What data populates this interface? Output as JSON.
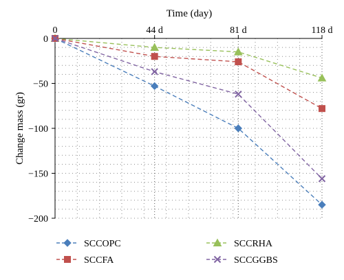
{
  "chart_data": {
    "type": "line",
    "title": "",
    "xlabel": "Time (day)",
    "ylabel": "Change mass (gr)",
    "x": [
      0,
      44,
      81,
      118
    ],
    "x_tick_labels": [
      "0",
      "44 d",
      "81 d",
      "118 d"
    ],
    "y_ticks": [
      0,
      -50,
      -100,
      -150,
      -200
    ],
    "y_tick_labels": [
      "0",
      "−50",
      "−100",
      "−150",
      "−200"
    ],
    "ylim": [
      -200,
      0
    ],
    "xlim": [
      0,
      118
    ],
    "x_axis_position": "top",
    "grid": true,
    "legend_position": "bottom",
    "series": [
      {
        "name": "SCCOPC",
        "values": [
          0,
          -53,
          -100,
          -185
        ],
        "color": "#4a7ebb",
        "marker": "diamond"
      },
      {
        "name": "SCCRHA",
        "values": [
          0,
          -10,
          -15,
          -44
        ],
        "color": "#98c05a",
        "marker": "triangle"
      },
      {
        "name": "SCCFA",
        "values": [
          0,
          -20,
          -26,
          -78
        ],
        "color": "#c0504d",
        "marker": "square"
      },
      {
        "name": "SCCGGBS",
        "values": [
          0,
          -37,
          -62,
          -156
        ],
        "color": "#8064a2",
        "marker": "x"
      }
    ]
  }
}
